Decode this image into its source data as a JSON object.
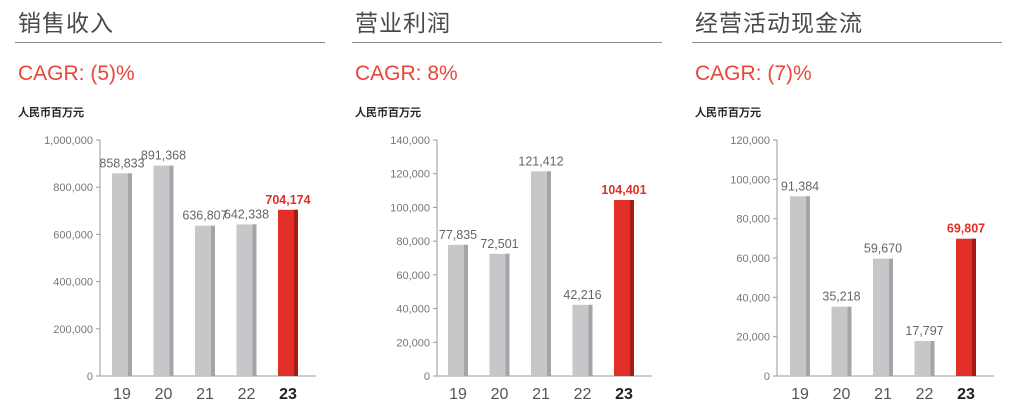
{
  "colors": {
    "bar": "#c6c7c9",
    "bar_shade": "#a4a5a8",
    "bar_highlight": "#e03028",
    "bar_highlight_shade": "#a61c14",
    "accent_text": "#e8463a"
  },
  "chart_data": [
    {
      "type": "bar",
      "title": "销售收入",
      "subtitle": "CAGR: (5)%",
      "ylabel": "人民币百万元",
      "categories": [
        "19",
        "20",
        "21",
        "22",
        "23"
      ],
      "values": [
        858833,
        891368,
        636807,
        642338,
        704174
      ],
      "value_labels": [
        "858,833",
        "891,368",
        "636,807",
        "642,338",
        "704,174"
      ],
      "yticks": [
        0,
        200000,
        400000,
        600000,
        800000,
        1000000
      ],
      "ytick_labels": [
        "0",
        "200,000",
        "400,000",
        "600,000",
        "800,000",
        "1,000,000"
      ],
      "ylim": [
        0,
        1000000
      ],
      "highlight_index": 4,
      "grid": false
    },
    {
      "type": "bar",
      "title": "营业利润",
      "subtitle": "CAGR: 8%",
      "ylabel": "人民币百万元",
      "categories": [
        "19",
        "20",
        "21",
        "22",
        "23"
      ],
      "values": [
        77835,
        72501,
        121412,
        42216,
        104401
      ],
      "value_labels": [
        "77,835",
        "72,501",
        "121,412",
        "42,216",
        "104,401"
      ],
      "yticks": [
        0,
        20000,
        40000,
        60000,
        80000,
        100000,
        120000,
        140000
      ],
      "ytick_labels": [
        "0",
        "20,000",
        "40,000",
        "60,000",
        "80,000",
        "100,000",
        "120,000",
        "140,000"
      ],
      "ylim": [
        0,
        140000
      ],
      "highlight_index": 4,
      "grid": false
    },
    {
      "type": "bar",
      "title": "经营活动现金流",
      "subtitle": "CAGR: (7)%",
      "ylabel": "人民币百万元",
      "categories": [
        "19",
        "20",
        "21",
        "22",
        "23"
      ],
      "values": [
        91384,
        35218,
        59670,
        17797,
        69807
      ],
      "value_labels": [
        "91,384",
        "35,218",
        "59,670",
        "17,797",
        "69,807"
      ],
      "yticks": [
        0,
        20000,
        40000,
        60000,
        80000,
        100000,
        120000
      ],
      "ytick_labels": [
        "0",
        "20,000",
        "40,000",
        "60,000",
        "80,000",
        "100,000",
        "120,000"
      ],
      "ylim": [
        0,
        120000
      ],
      "highlight_index": 4,
      "grid": false
    }
  ]
}
